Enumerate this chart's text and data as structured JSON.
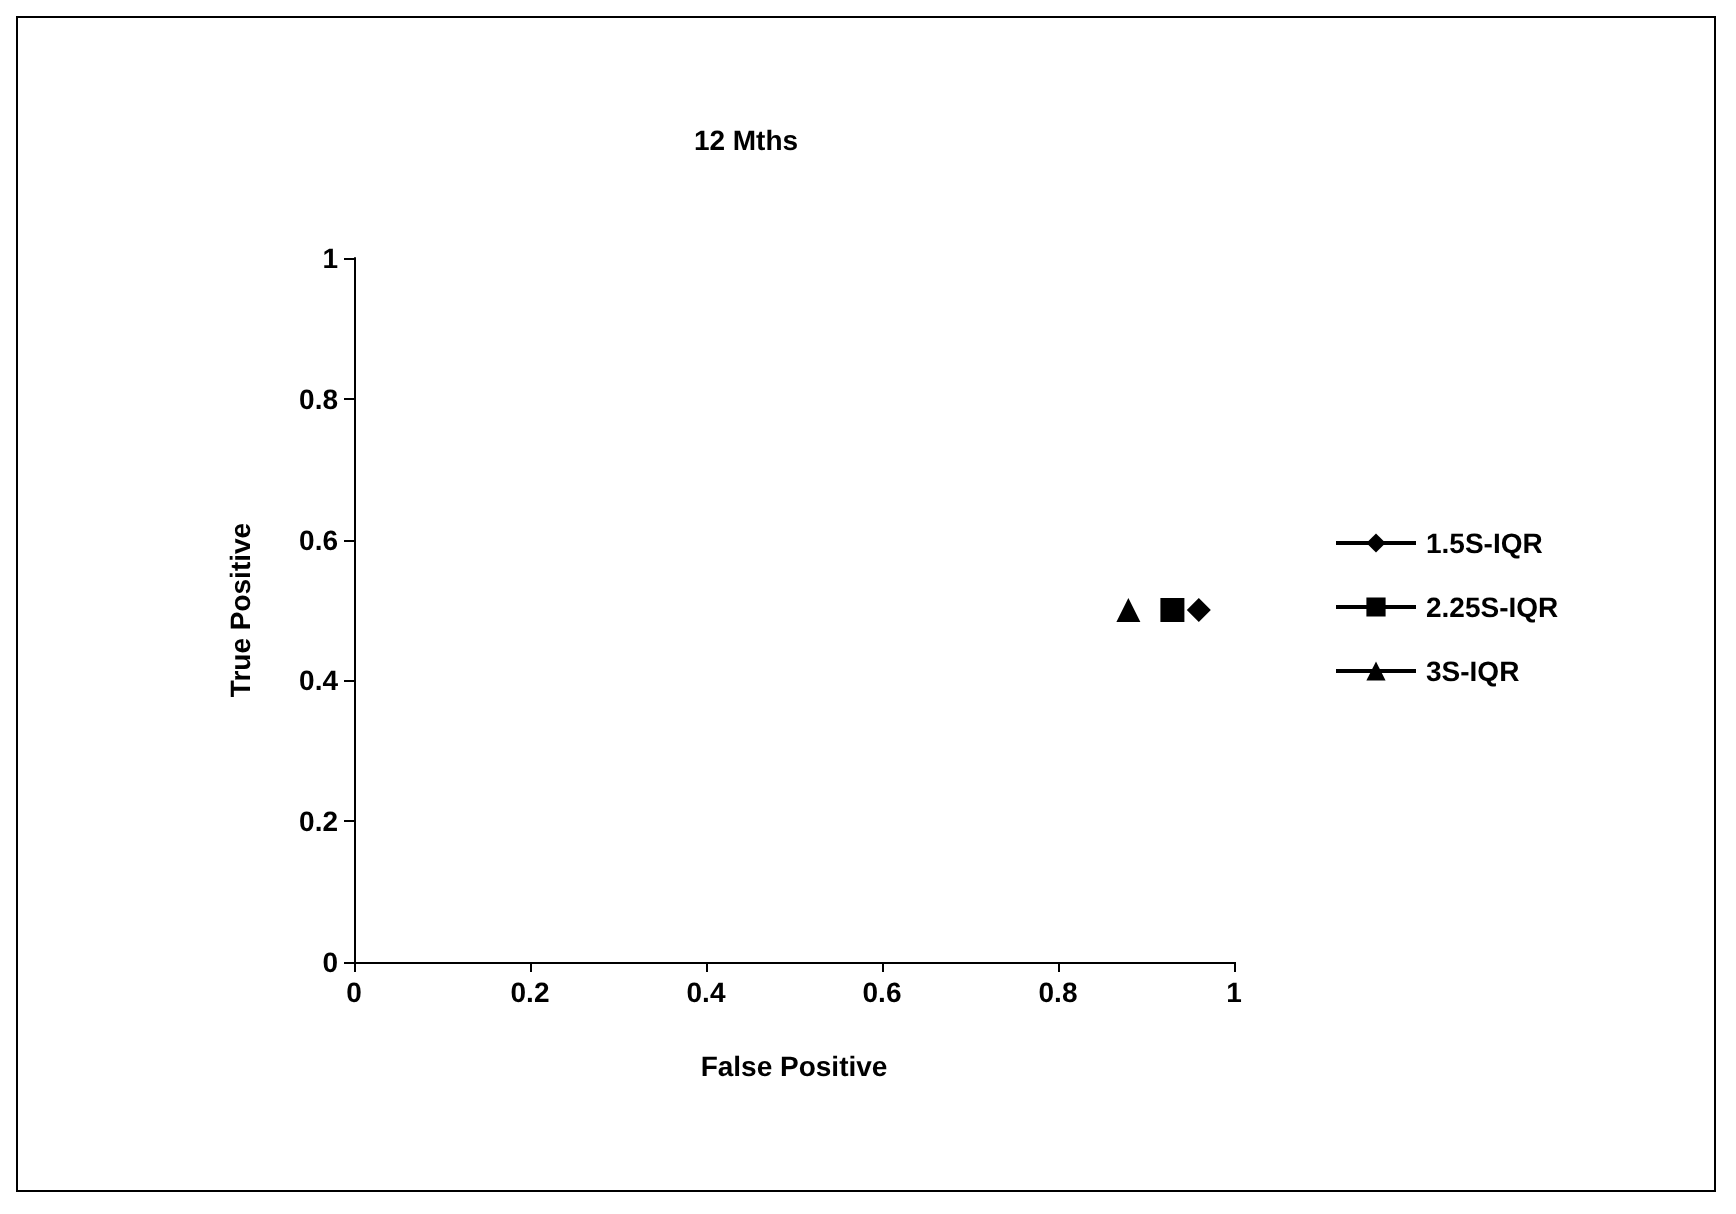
{
  "chart_data": {
    "type": "line",
    "title": "12 Mths",
    "xlabel": "False Positive",
    "ylabel": "True Positive",
    "xlim": [
      0,
      1
    ],
    "xticks": [
      0,
      0.2,
      0.4,
      0.6,
      0.8,
      1
    ],
    "ylim": [
      0,
      1
    ],
    "yticks": [
      0,
      0.2,
      0.4,
      0.6,
      0.8,
      1
    ],
    "grid": false,
    "legend": "right",
    "series": [
      {
        "name": "1.5S-IQR",
        "color": "#000000",
        "x": [
          0.96
        ],
        "values": [
          0.5
        ],
        "marker": "diamond"
      },
      {
        "name": "2.25S-IQR",
        "color": "#000000",
        "x": [
          0.93
        ],
        "values": [
          0.5
        ],
        "marker": "square"
      },
      {
        "name": "3S-IQR",
        "color": "#000000",
        "x": [
          0.88
        ],
        "values": [
          0.5
        ],
        "marker": "triangle"
      }
    ]
  }
}
